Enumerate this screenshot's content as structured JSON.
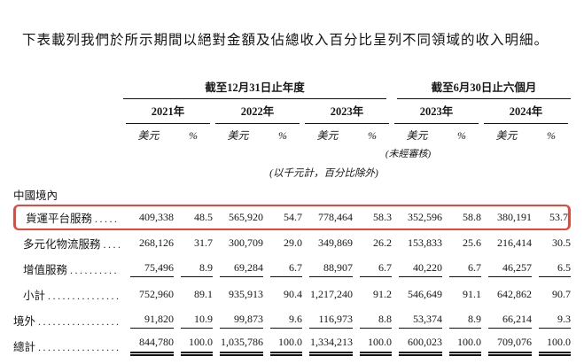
{
  "intro": "下表載列我們於所示期間以絕對金額及佔總收入百分比呈列不同領域的收入明細。",
  "table": {
    "highlight_color": "#e8473b",
    "period_groups": [
      {
        "label": "截至12月31日止年度",
        "years": [
          "2021年",
          "2022年",
          "2023年"
        ]
      },
      {
        "label": "截至6月30日止六個月",
        "years": [
          "2023年",
          "2024年"
        ]
      }
    ],
    "unit_headers": {
      "amount": "美元",
      "percent": "%"
    },
    "unaudited_note": "(未經審核)",
    "units_note": "(以千元計，百分比除外)",
    "rows": [
      {
        "label": "中國境內",
        "section": true,
        "indent": false,
        "leader": "",
        "values": []
      },
      {
        "label": "貨運平台服務",
        "indent": true,
        "highlighted": true,
        "leader": "..........",
        "values": [
          "409,338",
          "48.5",
          "565,920",
          "54.7",
          "778,464",
          "58.3",
          "352,596",
          "58.8",
          "380,191",
          "53.7"
        ]
      },
      {
        "label": "多元化物流服務",
        "indent": true,
        "leader": "........",
        "values": [
          "268,126",
          "31.7",
          "300,709",
          "29.0",
          "349,869",
          "26.2",
          "153,833",
          "25.6",
          "216,414",
          "30.5"
        ]
      },
      {
        "label": "增值服務",
        "indent": true,
        "rule_below": true,
        "leader": "..............",
        "values": [
          "75,496",
          "8.9",
          "69,284",
          "6.7",
          "88,907",
          "6.7",
          "40,220",
          "6.7",
          "46,257",
          "6.5"
        ]
      },
      {
        "label": "小計",
        "indent": true,
        "leader": ".................",
        "values": [
          "752,960",
          "89.1",
          "935,913",
          "90.4",
          "1,217,240",
          "91.2",
          "546,649",
          "91.1",
          "642,862",
          "90.7"
        ]
      },
      {
        "label": "境外",
        "indent": false,
        "rule_below": true,
        "leader": "....................",
        "values": [
          "91,820",
          "10.9",
          "99,873",
          "9.6",
          "116,973",
          "8.8",
          "53,374",
          "8.9",
          "66,214",
          "9.3"
        ]
      },
      {
        "label": "總計",
        "indent": false,
        "bold": true,
        "double_rule_below": true,
        "leader": "....................",
        "values": [
          "844,780",
          "100.0",
          "1,035,786",
          "100.0",
          "1,334,213",
          "100.0",
          "600,023",
          "100.0",
          "709,076",
          "100.0"
        ]
      }
    ]
  }
}
